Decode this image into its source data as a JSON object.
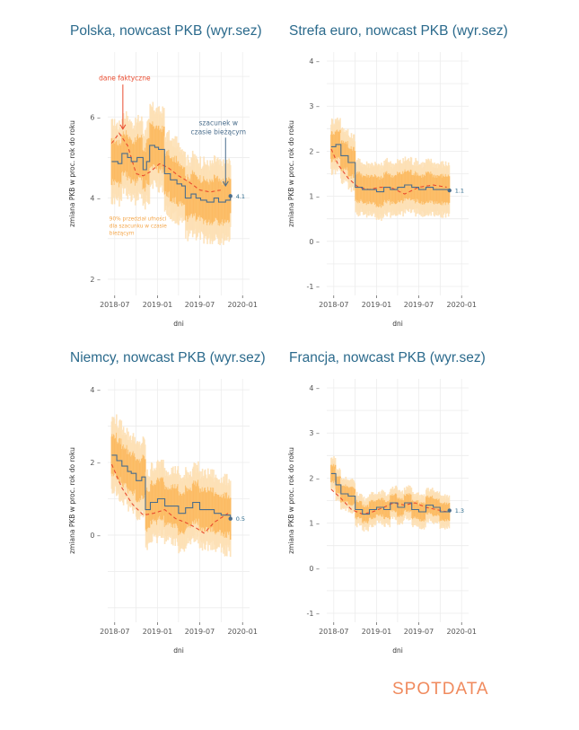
{
  "logo": {
    "text": "SPOTDATA"
  },
  "chart_data": [
    {
      "id": "pl",
      "type": "line",
      "title": "Polska, nowcast PKB (wyr.sez)",
      "xlabel": "dni",
      "ylabel": "zmiana PKB w proc. rok do roku",
      "ylim": [
        1.6,
        7.6
      ],
      "yticks": [
        2,
        4,
        6
      ],
      "xlim": [
        "2018-06-01",
        "2020-01-31"
      ],
      "xticks": [
        {
          "date": "2018-07-01",
          "label": "2018-07"
        },
        {
          "date": "2019-01-01",
          "label": "2019-01"
        },
        {
          "date": "2019-07-01",
          "label": "2019-07"
        },
        {
          "date": "2020-01-01",
          "label": "2020-01"
        }
      ],
      "grid": true,
      "band_width": 0.9,
      "end_label": "4.1",
      "series": [
        {
          "role": "nowcast",
          "values": [
            [
              "2018-06-18",
              4.9
            ],
            [
              "2018-07-15",
              4.85
            ],
            [
              "2018-08-01",
              5.1
            ],
            [
              "2018-08-25",
              5.0
            ],
            [
              "2018-09-10",
              4.9
            ],
            [
              "2018-10-05",
              5.0
            ],
            [
              "2018-10-31",
              4.7
            ],
            [
              "2018-11-15",
              4.9
            ],
            [
              "2018-11-28",
              5.3
            ],
            [
              "2018-12-20",
              5.25
            ],
            [
              "2019-01-05",
              5.2
            ],
            [
              "2019-01-31",
              4.6
            ],
            [
              "2019-02-25",
              4.45
            ],
            [
              "2019-03-25",
              4.35
            ],
            [
              "2019-04-15",
              4.3
            ],
            [
              "2019-04-30",
              4.0
            ],
            [
              "2019-05-25",
              4.1
            ],
            [
              "2019-06-15",
              4.0
            ],
            [
              "2019-07-05",
              3.95
            ],
            [
              "2019-07-31",
              3.9
            ],
            [
              "2019-08-31",
              4.0
            ],
            [
              "2019-09-20",
              3.9
            ],
            [
              "2019-10-20",
              3.95
            ],
            [
              "2019-11-10",
              4.05
            ]
          ]
        },
        {
          "role": "actual",
          "values": [
            [
              "2018-06-18",
              5.35
            ],
            [
              "2018-07-20",
              5.6
            ],
            [
              "2018-08-25",
              5.3
            ],
            [
              "2018-10-01",
              4.6
            ],
            [
              "2018-11-01",
              4.55
            ],
            [
              "2018-12-01",
              4.65
            ],
            [
              "2019-01-10",
              4.85
            ],
            [
              "2019-02-15",
              4.75
            ],
            [
              "2019-04-01",
              4.55
            ],
            [
              "2019-05-15",
              4.4
            ],
            [
              "2019-07-01",
              4.2
            ],
            [
              "2019-08-15",
              4.15
            ],
            [
              "2019-10-01",
              4.2
            ]
          ]
        }
      ],
      "annotations": {
        "actual": "dane faktyczne",
        "nowcast": [
          "szacunek w",
          "czasie bieżącym"
        ],
        "band": [
          "90% przedział ufności",
          "dla szacunku w czasie",
          "bieżącym"
        ]
      }
    },
    {
      "id": "ez",
      "type": "line",
      "title": "Strefa euro, nowcast PKB (wyr.sez)",
      "xlabel": "dni",
      "ylabel": "zmiana PKB w proc. rok do roku",
      "ylim": [
        -1.2,
        4.2
      ],
      "yticks": [
        -1,
        0,
        1,
        2,
        3,
        4
      ],
      "xlim": [
        "2018-06-01",
        "2020-01-31"
      ],
      "xticks": [
        {
          "date": "2018-07-01",
          "label": "2018-07"
        },
        {
          "date": "2019-01-01",
          "label": "2019-01"
        },
        {
          "date": "2019-07-01",
          "label": "2019-07"
        },
        {
          "date": "2020-01-01",
          "label": "2020-01"
        }
      ],
      "grid": true,
      "band_width": 0.55,
      "end_label": "1.1",
      "series": [
        {
          "role": "nowcast",
          "values": [
            [
              "2018-06-20",
              2.1
            ],
            [
              "2018-07-10",
              2.15
            ],
            [
              "2018-08-01",
              1.9
            ],
            [
              "2018-09-01",
              1.75
            ],
            [
              "2018-10-01",
              1.2
            ],
            [
              "2018-11-01",
              1.15
            ],
            [
              "2018-12-01",
              1.15
            ],
            [
              "2019-01-01",
              1.1
            ],
            [
              "2019-02-01",
              1.2
            ],
            [
              "2019-03-01",
              1.15
            ],
            [
              "2019-04-01",
              1.2
            ],
            [
              "2019-05-01",
              1.25
            ],
            [
              "2019-06-01",
              1.2
            ],
            [
              "2019-07-01",
              1.15
            ],
            [
              "2019-08-01",
              1.2
            ],
            [
              "2019-09-01",
              1.15
            ],
            [
              "2019-10-01",
              1.15
            ],
            [
              "2019-11-10",
              1.13
            ]
          ]
        },
        {
          "role": "actual",
          "values": [
            [
              "2018-06-20",
              2.05
            ],
            [
              "2018-07-20",
              1.7
            ],
            [
              "2018-09-01",
              1.4
            ],
            [
              "2018-10-15",
              1.2
            ],
            [
              "2018-12-01",
              1.15
            ],
            [
              "2019-01-15",
              1.2
            ],
            [
              "2019-03-01",
              1.2
            ],
            [
              "2019-05-01",
              1.05
            ],
            [
              "2019-07-01",
              1.2
            ],
            [
              "2019-09-01",
              1.25
            ],
            [
              "2019-10-31",
              1.2
            ]
          ]
        }
      ]
    },
    {
      "id": "de",
      "type": "line",
      "title": "Niemcy, nowcast PKB (wyr.sez)",
      "xlabel": "dni",
      "ylabel": "zmiana PKB w proc. rok do roku",
      "ylim": [
        -2.4,
        4.3
      ],
      "yticks": [
        0,
        2,
        4
      ],
      "xlim": [
        "2018-06-01",
        "2020-01-31"
      ],
      "xticks": [
        {
          "date": "2018-07-01",
          "label": "2018-07"
        },
        {
          "date": "2019-01-01",
          "label": "2019-01"
        },
        {
          "date": "2019-07-01",
          "label": "2019-07"
        },
        {
          "date": "2020-01-01",
          "label": "2020-01"
        }
      ],
      "grid": true,
      "band_width": 0.95,
      "end_label": "0.5",
      "series": [
        {
          "role": "nowcast",
          "values": [
            [
              "2018-06-18",
              2.2
            ],
            [
              "2018-07-10",
              2.05
            ],
            [
              "2018-08-01",
              1.9
            ],
            [
              "2018-08-25",
              1.75
            ],
            [
              "2018-09-10",
              1.7
            ],
            [
              "2018-10-01",
              1.5
            ],
            [
              "2018-10-25",
              1.6
            ],
            [
              "2018-11-10",
              0.7
            ],
            [
              "2018-12-01",
              0.9
            ],
            [
              "2019-01-01",
              1.0
            ],
            [
              "2019-02-01",
              0.8
            ],
            [
              "2019-03-01",
              0.8
            ],
            [
              "2019-04-01",
              0.6
            ],
            [
              "2019-05-01",
              0.75
            ],
            [
              "2019-06-01",
              0.9
            ],
            [
              "2019-07-01",
              0.7
            ],
            [
              "2019-08-01",
              0.7
            ],
            [
              "2019-09-01",
              0.6
            ],
            [
              "2019-10-01",
              0.55
            ],
            [
              "2019-11-10",
              0.45
            ]
          ]
        },
        {
          "role": "actual",
          "values": [
            [
              "2018-06-18",
              1.95
            ],
            [
              "2018-08-01",
              1.3
            ],
            [
              "2018-09-15",
              0.85
            ],
            [
              "2018-11-01",
              0.55
            ],
            [
              "2018-12-15",
              0.6
            ],
            [
              "2019-02-01",
              0.7
            ],
            [
              "2019-03-20",
              0.45
            ],
            [
              "2019-05-01",
              0.35
            ],
            [
              "2019-06-15",
              0.2
            ],
            [
              "2019-07-20",
              0.05
            ],
            [
              "2019-09-01",
              0.35
            ],
            [
              "2019-10-31",
              0.6
            ]
          ]
        }
      ]
    },
    {
      "id": "fr",
      "type": "line",
      "title": "Francja, nowcast PKB (wyr.sez)",
      "xlabel": "dni",
      "ylabel": "zmiana PKB w proc. rok do roku",
      "ylim": [
        -1.2,
        4.2
      ],
      "yticks": [
        -1,
        0,
        1,
        2,
        3,
        4
      ],
      "xlim": [
        "2018-06-01",
        "2020-01-31"
      ],
      "xticks": [
        {
          "date": "2018-07-01",
          "label": "2018-07"
        },
        {
          "date": "2019-01-01",
          "label": "2019-01"
        },
        {
          "date": "2019-07-01",
          "label": "2019-07"
        },
        {
          "date": "2020-01-01",
          "label": "2020-01"
        }
      ],
      "grid": true,
      "band_width": 0.33,
      "end_label": "1.3",
      "series": [
        {
          "role": "nowcast",
          "values": [
            [
              "2018-06-20",
              2.1
            ],
            [
              "2018-07-10",
              1.85
            ],
            [
              "2018-08-01",
              1.65
            ],
            [
              "2018-09-01",
              1.6
            ],
            [
              "2018-10-01",
              1.3
            ],
            [
              "2018-11-01",
              1.2
            ],
            [
              "2018-12-01",
              1.3
            ],
            [
              "2019-01-01",
              1.35
            ],
            [
              "2019-02-01",
              1.3
            ],
            [
              "2019-03-01",
              1.45
            ],
            [
              "2019-04-01",
              1.35
            ],
            [
              "2019-05-01",
              1.45
            ],
            [
              "2019-06-01",
              1.3
            ],
            [
              "2019-07-01",
              1.25
            ],
            [
              "2019-08-01",
              1.4
            ],
            [
              "2019-09-01",
              1.35
            ],
            [
              "2019-10-01",
              1.25
            ],
            [
              "2019-11-10",
              1.28
            ]
          ]
        },
        {
          "role": "actual",
          "values": [
            [
              "2018-06-20",
              1.75
            ],
            [
              "2018-08-01",
              1.55
            ],
            [
              "2018-09-15",
              1.3
            ],
            [
              "2018-11-01",
              1.2
            ],
            [
              "2018-12-15",
              1.25
            ],
            [
              "2019-02-01",
              1.35
            ],
            [
              "2019-03-15",
              1.45
            ],
            [
              "2019-05-01",
              1.4
            ],
            [
              "2019-06-15",
              1.45
            ],
            [
              "2019-08-01",
              1.35
            ],
            [
              "2019-09-15",
              1.3
            ],
            [
              "2019-10-31",
              1.25
            ]
          ]
        }
      ]
    }
  ],
  "colors": {
    "title": "#2b6a8c",
    "nowcast": "#4a6d8c",
    "actual": "#e94b2f",
    "band_inner": "#fbb24e",
    "band_outer": "#fde0b5",
    "grid": "#ececec",
    "logo": "#f08a5d"
  }
}
